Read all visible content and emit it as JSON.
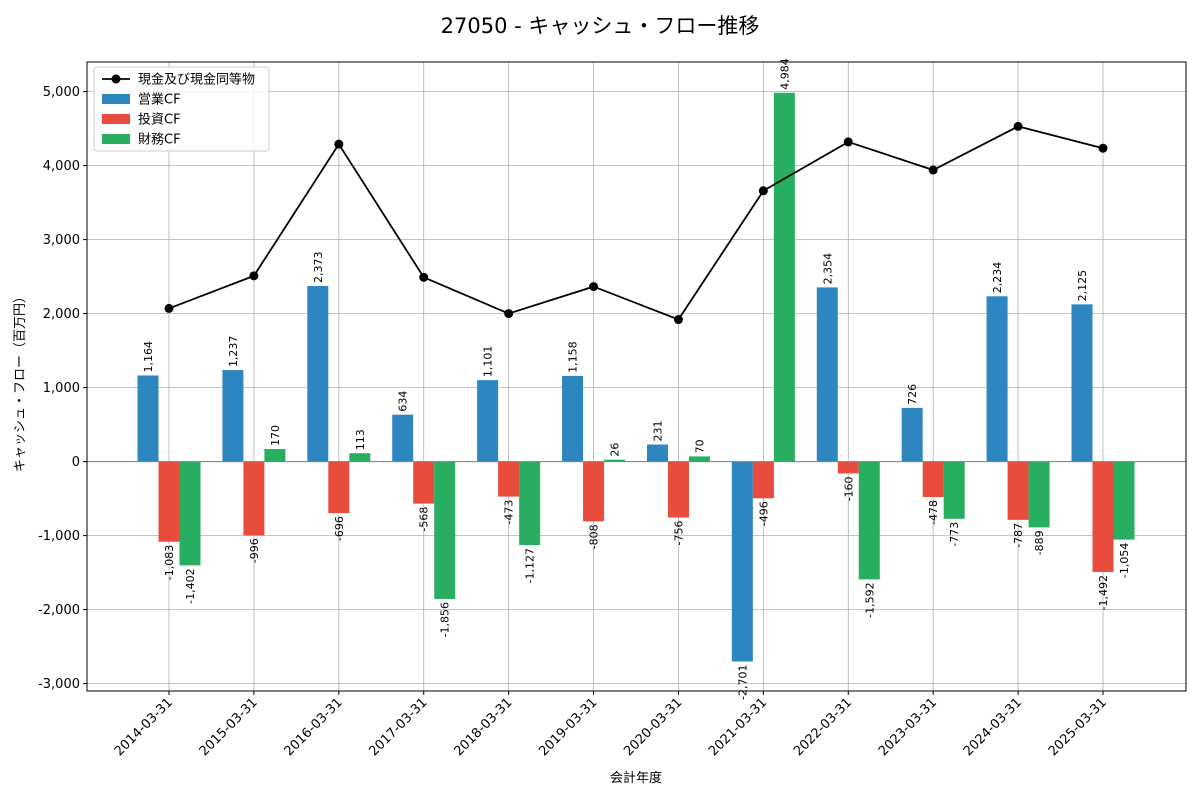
{
  "chart_data": {
    "type": "bar",
    "title": "27050 - キャッシュ・フロー推移",
    "xlabel": "会計年度",
    "ylabel": "キャッシュ・フロー（百万円）",
    "ylim": [
      -3100,
      5400
    ],
    "yticks": [
      -3000,
      -2000,
      -1000,
      0,
      1000,
      2000,
      3000,
      4000,
      5000
    ],
    "ytick_labels": [
      "-3,000",
      "-2,000",
      "-1,000",
      "0",
      "1,000",
      "2,000",
      "3,000",
      "4,000",
      "5,000"
    ],
    "grid": true,
    "legend_position": "top-left",
    "categories": [
      "2014-03-31",
      "2015-03-31",
      "2016-03-31",
      "2017-03-31",
      "2018-03-31",
      "2019-03-31",
      "2020-03-31",
      "2021-03-31",
      "2022-03-31",
      "2023-03-31",
      "2024-03-31",
      "2025-03-31"
    ],
    "series": [
      {
        "name": "営業CF",
        "kind": "bar",
        "color": "#2e86c1",
        "values": [
          1164,
          1237,
          2373,
          634,
          1101,
          1158,
          231,
          -2701,
          2354,
          726,
          2234,
          2125
        ],
        "labels": [
          "1,164",
          "1,237",
          "2,373",
          "634",
          "1,101",
          "1,158",
          "231",
          "-2,701",
          "2,354",
          "726",
          "2,234",
          "2,125"
        ]
      },
      {
        "name": "投資CF",
        "kind": "bar",
        "color": "#e74c3c",
        "values": [
          -1083,
          -996,
          -696,
          -568,
          -473,
          -808,
          -756,
          -496,
          -160,
          -478,
          -787,
          -1492
        ],
        "labels": [
          "-1,083",
          "-996",
          "-696",
          "-568",
          "-473",
          "-808",
          "-756",
          "-496",
          "-160",
          "-478",
          "-787",
          "-1,492"
        ]
      },
      {
        "name": "財務CF",
        "kind": "bar",
        "color": "#27ae60",
        "values": [
          -1402,
          170,
          113,
          -1856,
          -1127,
          26,
          70,
          4984,
          -1592,
          -773,
          -889,
          -1054
        ],
        "labels": [
          "-1,402",
          "170",
          "113",
          "-1,856",
          "-1,127",
          "26",
          "70",
          "4,984",
          "-1,592",
          "-773",
          "-889",
          "-1,054"
        ]
      },
      {
        "name": "現金及び現金同等物",
        "kind": "line",
        "color": "#000000",
        "values": [
          2070,
          2510,
          4290,
          2490,
          2000,
          2365,
          1920,
          3660,
          4320,
          3940,
          4530,
          4235
        ]
      }
    ]
  }
}
